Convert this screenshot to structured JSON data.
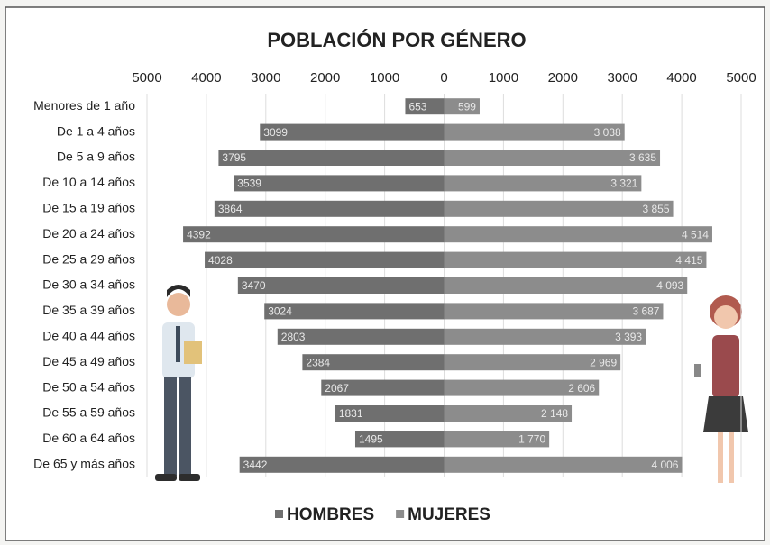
{
  "chart_data": {
    "type": "pyramid",
    "title": "POBLACIÓN POR GÉNERO",
    "categories": [
      "Menores de 1 año",
      "De 1 a 4 años",
      "De 5 a 9 años",
      "De 10 a 14 años",
      "De 15 a 19 años",
      "De 20 a 24 años",
      "De 25 a 29 años",
      "De 30 a 34 años",
      "De 35 a 39 años",
      "De 40 a 44 años",
      "De 45 a 49 años",
      "De 50 a 54 años",
      "De 55 a 59 años",
      "De 60 a 64 años",
      "De 65 y más años"
    ],
    "series": [
      {
        "name": "HOMBRES",
        "color": "#6f6f6f",
        "side": "left",
        "values": [
          653,
          3099,
          3795,
          3539,
          3864,
          4392,
          4028,
          3470,
          3024,
          2803,
          2384,
          2067,
          1831,
          1495,
          3442
        ]
      },
      {
        "name": "MUJERES",
        "color": "#8c8c8c",
        "side": "right",
        "values": [
          599,
          3038,
          3635,
          3321,
          3855,
          4514,
          4415,
          4093,
          3687,
          3393,
          2969,
          2606,
          2148,
          1770,
          4006
        ],
        "value_labels": [
          "599",
          "3 038",
          "3 635",
          "3 321",
          "3 855",
          "4 514",
          "4 415",
          "4 093",
          "3 687",
          "3 393",
          "2 969",
          "2 606",
          "2 148",
          "1 770",
          "4 006"
        ]
      }
    ],
    "xlim": [
      -5000,
      5000
    ],
    "xticks": [
      {
        "value": -5000,
        "label": "5000"
      },
      {
        "value": -4000,
        "label": "4000"
      },
      {
        "value": -3000,
        "label": "3000"
      },
      {
        "value": -2000,
        "label": "2000"
      },
      {
        "value": -1000,
        "label": "1000"
      },
      0,
      1000,
      2000,
      3000,
      4000,
      5000
    ],
    "grid": true,
    "legend": "bottom"
  }
}
